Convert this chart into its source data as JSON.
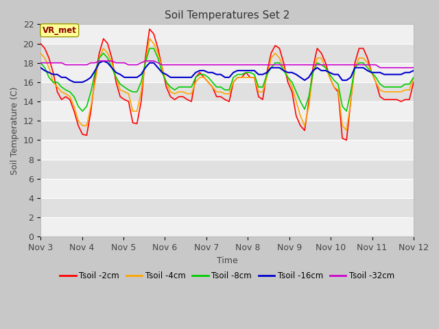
{
  "title": "Soil Temperatures Set 2",
  "xlabel": "Time",
  "ylabel": "Soil Temperature (C)",
  "ylim": [
    0,
    22
  ],
  "yticks": [
    0,
    2,
    4,
    6,
    8,
    10,
    12,
    14,
    16,
    18,
    20,
    22
  ],
  "xtick_labels": [
    "Nov 3",
    "Nov 4",
    "Nov 5",
    "Nov 6",
    "Nov 7",
    "Nov 8",
    "Nov 9",
    "Nov 10",
    "Nov 11",
    "Nov 12"
  ],
  "annotation_label": "VR_met",
  "annotation_color": "#8B0000",
  "annotation_bg": "#ffff99",
  "annotation_edge": "#999900",
  "fig_bg": "#c8c8c8",
  "plot_bg_light": "#f0f0f0",
  "plot_bg_dark": "#e0e0e0",
  "grid_color": "#ffffff",
  "series": {
    "Tsoil -2cm": {
      "color": "#ff0000",
      "lw": 1.2
    },
    "Tsoil -4cm": {
      "color": "#ffa500",
      "lw": 1.2
    },
    "Tsoil -8cm": {
      "color": "#00cc00",
      "lw": 1.2
    },
    "Tsoil -16cm": {
      "color": "#0000cc",
      "lw": 1.5
    },
    "Tsoil -32cm": {
      "color": "#cc00cc",
      "lw": 1.2
    }
  },
  "t2cm": [
    20.0,
    19.5,
    18.5,
    17.0,
    15.0,
    14.2,
    14.5,
    14.2,
    13.0,
    11.5,
    10.6,
    10.5,
    13.0,
    16.5,
    19.0,
    20.5,
    20.0,
    18.5,
    16.0,
    14.5,
    14.2,
    14.0,
    11.8,
    11.7,
    14.0,
    18.5,
    21.5,
    21.0,
    19.5,
    17.5,
    15.5,
    14.5,
    14.2,
    14.5,
    14.5,
    14.2,
    14.0,
    16.5,
    17.0,
    16.5,
    16.0,
    15.5,
    14.5,
    14.5,
    14.2,
    14.0,
    16.0,
    16.5,
    16.5,
    17.0,
    16.5,
    16.5,
    14.5,
    14.2,
    17.0,
    19.0,
    19.8,
    19.5,
    18.0,
    16.0,
    15.0,
    12.5,
    11.5,
    11.0,
    14.0,
    17.5,
    19.5,
    19.0,
    18.0,
    16.5,
    15.5,
    15.0,
    10.2,
    10.0,
    14.0,
    18.0,
    19.5,
    19.5,
    18.5,
    17.0,
    16.0,
    14.5,
    14.2,
    14.2,
    14.2,
    14.2,
    14.0,
    14.2,
    14.2,
    16.0
  ],
  "t4cm": [
    19.0,
    18.5,
    17.5,
    16.0,
    15.5,
    15.0,
    14.8,
    14.5,
    13.5,
    12.0,
    11.5,
    11.5,
    13.5,
    16.0,
    18.5,
    19.5,
    19.0,
    18.0,
    16.5,
    15.2,
    15.0,
    14.8,
    13.0,
    13.0,
    15.0,
    18.0,
    20.5,
    20.0,
    19.0,
    17.5,
    16.0,
    15.0,
    14.8,
    15.0,
    15.0,
    14.8,
    14.8,
    16.0,
    16.5,
    16.5,
    16.0,
    15.5,
    15.0,
    15.0,
    14.8,
    14.8,
    16.0,
    16.5,
    16.5,
    16.5,
    16.5,
    16.5,
    15.0,
    15.0,
    16.5,
    18.5,
    19.0,
    18.5,
    17.5,
    16.5,
    15.5,
    14.0,
    12.5,
    11.5,
    13.5,
    17.0,
    18.5,
    18.5,
    17.5,
    16.5,
    15.5,
    15.2,
    11.5,
    11.0,
    14.0,
    17.5,
    18.5,
    18.5,
    18.0,
    17.0,
    16.0,
    15.2,
    15.0,
    15.0,
    15.0,
    15.0,
    15.0,
    15.2,
    15.2,
    16.5
  ],
  "t8cm": [
    18.0,
    17.5,
    16.5,
    16.0,
    16.0,
    15.5,
    15.2,
    15.0,
    14.5,
    13.5,
    13.0,
    13.5,
    15.0,
    17.0,
    18.5,
    19.0,
    18.5,
    17.5,
    16.5,
    15.8,
    15.5,
    15.2,
    15.0,
    15.0,
    16.0,
    18.0,
    19.5,
    19.5,
    18.5,
    17.0,
    16.0,
    15.5,
    15.2,
    15.5,
    15.5,
    15.5,
    15.5,
    16.5,
    16.8,
    16.8,
    16.5,
    16.0,
    15.5,
    15.5,
    15.2,
    15.2,
    16.5,
    16.8,
    16.8,
    17.0,
    17.0,
    16.8,
    15.5,
    15.5,
    16.8,
    17.5,
    18.0,
    18.0,
    17.2,
    16.5,
    16.0,
    15.0,
    14.0,
    13.2,
    14.5,
    17.0,
    18.0,
    17.8,
    17.5,
    16.8,
    16.2,
    15.8,
    13.5,
    13.0,
    15.0,
    17.5,
    18.0,
    18.0,
    17.5,
    17.0,
    16.5,
    15.8,
    15.5,
    15.5,
    15.5,
    15.5,
    15.5,
    15.8,
    15.8,
    16.5
  ],
  "t16cm": [
    17.5,
    17.2,
    17.0,
    16.8,
    16.8,
    16.5,
    16.5,
    16.2,
    16.0,
    16.0,
    16.0,
    16.2,
    16.5,
    17.2,
    18.0,
    18.2,
    18.0,
    17.5,
    17.0,
    16.8,
    16.5,
    16.5,
    16.5,
    16.5,
    16.8,
    17.5,
    18.0,
    18.0,
    17.5,
    17.0,
    16.8,
    16.5,
    16.5,
    16.5,
    16.5,
    16.5,
    16.5,
    17.0,
    17.2,
    17.2,
    17.0,
    17.0,
    16.8,
    16.8,
    16.5,
    16.5,
    17.0,
    17.2,
    17.2,
    17.2,
    17.2,
    17.2,
    16.8,
    16.8,
    17.0,
    17.5,
    17.5,
    17.5,
    17.2,
    17.0,
    17.0,
    16.8,
    16.5,
    16.2,
    16.5,
    17.2,
    17.5,
    17.2,
    17.2,
    17.0,
    16.8,
    16.8,
    16.2,
    16.2,
    16.5,
    17.5,
    17.5,
    17.5,
    17.2,
    17.0,
    17.0,
    17.0,
    16.8,
    16.8,
    16.8,
    16.8,
    16.8,
    17.0,
    17.0,
    17.2
  ],
  "t32cm": [
    18.0,
    18.0,
    18.0,
    18.0,
    18.0,
    18.0,
    17.8,
    17.8,
    17.8,
    17.8,
    17.8,
    17.8,
    18.0,
    18.0,
    18.2,
    18.2,
    18.2,
    18.2,
    18.0,
    18.0,
    18.0,
    17.8,
    17.8,
    17.8,
    18.0,
    18.2,
    18.2,
    18.2,
    18.0,
    17.8,
    17.8,
    17.8,
    17.8,
    17.8,
    17.8,
    17.8,
    17.8,
    17.8,
    17.8,
    17.8,
    17.8,
    17.8,
    17.8,
    17.8,
    17.8,
    17.8,
    17.8,
    17.8,
    17.8,
    17.8,
    17.8,
    17.8,
    17.8,
    17.8,
    17.8,
    17.8,
    17.8,
    17.8,
    17.8,
    17.8,
    17.8,
    17.8,
    17.8,
    17.8,
    17.8,
    17.8,
    17.8,
    17.8,
    17.8,
    17.8,
    17.8,
    17.8,
    17.8,
    17.8,
    17.8,
    17.8,
    17.8,
    17.8,
    17.8,
    17.8,
    17.8,
    17.5,
    17.5,
    17.5,
    17.5,
    17.5,
    17.5,
    17.5,
    17.5,
    17.5
  ]
}
